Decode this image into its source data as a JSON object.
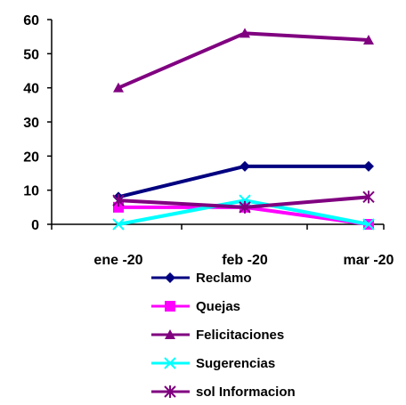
{
  "chart_data": {
    "type": "line",
    "categories": [
      "ene -20",
      "feb -20",
      "mar -20"
    ],
    "ylim": [
      0,
      60
    ],
    "yticks": [
      "0",
      "10",
      "20",
      "30",
      "40",
      "50",
      "60"
    ],
    "grid": false,
    "legend_placement": "bottom",
    "series": [
      {
        "name": "Reclamo",
        "values": [
          8,
          17,
          17
        ],
        "color": "#000080",
        "marker": "diamond"
      },
      {
        "name": "Quejas",
        "values": [
          5,
          5,
          0
        ],
        "color": "#ff00ff",
        "marker": "square"
      },
      {
        "name": "Felicitaciones",
        "values": [
          40,
          56,
          54
        ],
        "color": "#800080",
        "marker": "triangle"
      },
      {
        "name": "Sugerencias",
        "values": [
          0,
          7,
          0
        ],
        "color": "#00ffff",
        "marker": "x"
      },
      {
        "name": "sol Informacion",
        "values": [
          7,
          5,
          8
        ],
        "color": "#800080",
        "marker": "star"
      }
    ]
  }
}
